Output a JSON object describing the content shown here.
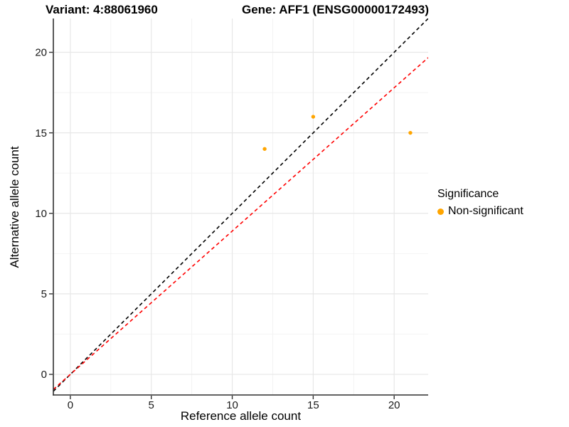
{
  "titles": {
    "variant": "Variant: 4:88061960",
    "gene": "Gene: AFF1 (ENSG00000172493)"
  },
  "chart_data": {
    "type": "scatter",
    "xlabel": "Reference allele count",
    "ylabel": "Alternative allele count",
    "x_ticks": [
      0,
      5,
      10,
      15,
      20
    ],
    "y_ticks": [
      0,
      5,
      10,
      15,
      20
    ],
    "x_minor_ticks": [
      2.5,
      7.5,
      12.5,
      17.5
    ],
    "y_minor_ticks": [
      2.5,
      7.5,
      12.5,
      17.5
    ],
    "xlim": [
      -1.05,
      22.1
    ],
    "ylim": [
      -1.28,
      22.1
    ],
    "grid": true,
    "legend_position": "right",
    "series": [
      {
        "name": "Non-significant",
        "color": "#FFA500",
        "points": [
          {
            "x": 12,
            "y": 14
          },
          {
            "x": 15,
            "y": 16
          },
          {
            "x": 21,
            "y": 15
          }
        ]
      }
    ],
    "reference_lines": [
      {
        "name": "identity-line",
        "slope": 1.0,
        "intercept": 0,
        "color": "#000000",
        "dash": "dashed"
      },
      {
        "name": "expected-ratio-line",
        "slope": 0.89,
        "intercept": 0,
        "color": "#FF0000",
        "dash": "dashed"
      }
    ],
    "legend": {
      "title": "Significance",
      "items": [
        {
          "label": "Non-significant",
          "color": "#FFA500"
        }
      ]
    },
    "colors": {
      "major_grid": "#E7E7E7",
      "minor_grid": "#F2F2F2",
      "axis_line": "#2F2F2F",
      "tick_label": "#1A1A1A"
    }
  }
}
